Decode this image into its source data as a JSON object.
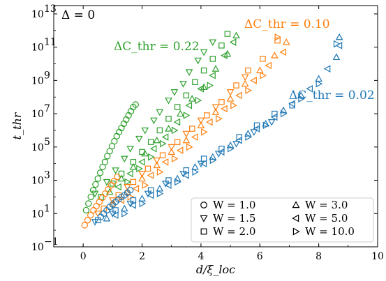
{
  "chart_data": {
    "type": "scatter",
    "title": "",
    "xlabel": "d/ξ_loc",
    "ylabel": "t_thr",
    "xlim": [
      -1,
      10
    ],
    "ylim_log10": [
      -1,
      13.5
    ],
    "y_scale": "log",
    "xticks": [
      "0",
      "2",
      "4",
      "6",
      "8",
      "10"
    ],
    "yticks": [
      {
        "exp": -1,
        "label": "10",
        "sup": "−1"
      },
      {
        "exp": 1,
        "label": "10",
        "sup": "1"
      },
      {
        "exp": 3,
        "label": "10",
        "sup": "3"
      },
      {
        "exp": 5,
        "label": "10",
        "sup": "5"
      },
      {
        "exp": 7,
        "label": "10",
        "sup": "7"
      },
      {
        "exp": 9,
        "label": "10",
        "sup": "9"
      },
      {
        "exp": 11,
        "label": "10",
        "sup": "11"
      },
      {
        "exp": 13,
        "label": "10",
        "sup": "13"
      }
    ],
    "grid": false,
    "legend_position": "bottom-right",
    "corner_label": "Δ = 0",
    "annotations": [
      {
        "text": "ΔC_thr = 0.22",
        "color": "#2ca02c"
      },
      {
        "text": "ΔC_thr = 0.10",
        "color": "#ff7f0e"
      },
      {
        "text": "ΔC_thr = 0.02",
        "color": "#1f77b4"
      }
    ],
    "legend": [
      {
        "marker": "circle",
        "label": "W = 1.0"
      },
      {
        "marker": "triangle-down",
        "label": "W = 1.5"
      },
      {
        "marker": "square",
        "label": "W = 2.0"
      },
      {
        "marker": "triangle-up",
        "label": "W = 3.0"
      },
      {
        "marker": "triangle-left",
        "label": "W = 5.0"
      },
      {
        "marker": "triangle-right",
        "label": "W = 10.0"
      }
    ],
    "series": [
      {
        "group": "ΔC_thr = 0.22",
        "color": "#2ca02c",
        "W": "1.0",
        "marker": "circle",
        "points": [
          [
            0.1,
            1.2
          ],
          [
            0.18,
            1.6
          ],
          [
            0.26,
            2.0
          ],
          [
            0.34,
            2.4
          ],
          [
            0.42,
            2.75
          ],
          [
            0.5,
            3.1
          ],
          [
            0.58,
            3.45
          ],
          [
            0.66,
            3.8
          ],
          [
            0.74,
            4.1
          ],
          [
            0.82,
            4.45
          ],
          [
            0.9,
            4.75
          ],
          [
            0.98,
            5.05
          ],
          [
            1.06,
            5.35
          ],
          [
            1.14,
            5.65
          ],
          [
            1.22,
            5.9
          ],
          [
            1.3,
            6.15
          ],
          [
            1.38,
            6.4
          ],
          [
            1.46,
            6.65
          ],
          [
            1.54,
            6.9
          ],
          [
            1.62,
            7.15
          ],
          [
            1.7,
            7.4
          ],
          [
            1.78,
            7.55
          ]
        ]
      },
      {
        "group": "ΔC_thr = 0.22",
        "color": "#2ca02c",
        "W": "1.5",
        "marker": "triangle-down",
        "points": [
          [
            0.4,
            2.2
          ],
          [
            0.8,
            2.9
          ],
          [
            1.1,
            3.6
          ],
          [
            1.4,
            4.3
          ],
          [
            1.6,
            4.9
          ],
          [
            1.9,
            5.5
          ],
          [
            2.1,
            6.0
          ],
          [
            2.4,
            6.6
          ],
          [
            2.6,
            7.1
          ],
          [
            2.9,
            7.8
          ],
          [
            3.1,
            8.3
          ],
          [
            3.4,
            8.8
          ],
          [
            3.6,
            9.5
          ],
          [
            3.9,
            10.2
          ],
          [
            4.1,
            10.7
          ],
          [
            4.4,
            11.3
          ]
        ]
      },
      {
        "group": "ΔC_thr = 0.22",
        "color": "#2ca02c",
        "W": "2.0",
        "marker": "square",
        "points": [
          [
            0.6,
            2.0
          ],
          [
            1.0,
            2.8
          ],
          [
            1.3,
            3.4
          ],
          [
            1.7,
            4.1
          ],
          [
            2.0,
            4.7
          ],
          [
            2.3,
            5.3
          ],
          [
            2.6,
            6.0
          ],
          [
            2.9,
            6.7
          ],
          [
            3.2,
            7.4
          ],
          [
            3.5,
            8.1
          ],
          [
            3.8,
            8.9
          ],
          [
            4.1,
            9.6
          ],
          [
            4.4,
            10.3
          ],
          [
            4.7,
            11.1
          ],
          [
            4.9,
            11.8
          ]
        ]
      },
      {
        "group": "ΔC_thr = 0.22",
        "color": "#2ca02c",
        "W": "3.0",
        "marker": "triangle-up",
        "points": [
          [
            0.9,
            2.3
          ],
          [
            1.3,
            3.1
          ],
          [
            1.7,
            3.8
          ],
          [
            2.1,
            4.6
          ],
          [
            2.5,
            5.4
          ],
          [
            2.9,
            6.1
          ],
          [
            3.3,
            7.0
          ],
          [
            3.7,
            7.9
          ],
          [
            4.1,
            8.6
          ],
          [
            4.5,
            9.7
          ],
          [
            4.9,
            10.6
          ],
          [
            5.2,
            11.7
          ]
        ]
      },
      {
        "group": "ΔC_thr = 0.22",
        "color": "#2ca02c",
        "W": "5.0",
        "marker": "triangle-left",
        "points": [
          [
            1.2,
            2.6
          ],
          [
            1.6,
            3.4
          ],
          [
            2.0,
            4.1
          ],
          [
            2.4,
            4.9
          ],
          [
            2.8,
            5.6
          ],
          [
            3.2,
            6.5
          ],
          [
            3.6,
            7.5
          ],
          [
            4.0,
            8.5
          ],
          [
            4.4,
            9.3
          ],
          [
            4.8,
            10.5
          ],
          [
            5.1,
            11.3
          ]
        ]
      },
      {
        "group": "ΔC_thr = 0.22",
        "color": "#2ca02c",
        "W": "10.0",
        "marker": "triangle-right",
        "points": [
          [
            1.5,
            2.9
          ],
          [
            1.9,
            3.7
          ],
          [
            2.3,
            4.4
          ],
          [
            2.7,
            5.2
          ],
          [
            3.1,
            6.0
          ],
          [
            3.5,
            6.9
          ],
          [
            3.9,
            7.8
          ],
          [
            4.3,
            8.7
          ]
        ]
      },
      {
        "group": "ΔC_thr = 0.10",
        "color": "#ff7f0e",
        "W": "1.0",
        "marker": "circle",
        "points": [
          [
            0.05,
            0.3
          ],
          [
            0.15,
            0.6
          ],
          [
            0.25,
            0.9
          ],
          [
            0.35,
            1.2
          ],
          [
            0.45,
            1.45
          ],
          [
            0.55,
            1.7
          ],
          [
            0.65,
            1.95
          ],
          [
            0.75,
            2.2
          ],
          [
            0.85,
            2.45
          ],
          [
            0.95,
            2.7
          ],
          [
            1.05,
            2.95
          ],
          [
            1.15,
            3.2
          ]
        ]
      },
      {
        "group": "ΔC_thr = 0.10",
        "color": "#ff7f0e",
        "W": "1.5",
        "marker": "triangle-down",
        "points": [
          [
            0.5,
            1.0
          ],
          [
            1.0,
            1.8
          ],
          [
            1.5,
            2.6
          ],
          [
            2.0,
            3.4
          ],
          [
            2.5,
            4.2
          ],
          [
            3.0,
            5.0
          ],
          [
            3.5,
            5.8
          ],
          [
            4.0,
            6.6
          ],
          [
            4.5,
            7.4
          ],
          [
            5.0,
            8.3
          ],
          [
            5.5,
            9.2
          ]
        ]
      },
      {
        "group": "ΔC_thr = 0.10",
        "color": "#ff7f0e",
        "W": "2.0",
        "marker": "square",
        "points": [
          [
            0.7,
            1.3
          ],
          [
            1.2,
            2.1
          ],
          [
            1.7,
            2.9
          ],
          [
            2.2,
            3.7
          ],
          [
            2.7,
            4.5
          ],
          [
            3.2,
            5.3
          ],
          [
            3.7,
            6.1
          ],
          [
            4.2,
            6.9
          ],
          [
            4.7,
            7.7
          ],
          [
            5.2,
            8.7
          ],
          [
            5.6,
            9.6
          ],
          [
            6.1,
            10.3
          ],
          [
            6.6,
            11.4
          ]
        ]
      },
      {
        "group": "ΔC_thr = 0.10",
        "color": "#ff7f0e",
        "W": "3.0",
        "marker": "triangle-up",
        "points": [
          [
            1.0,
            1.6
          ],
          [
            1.5,
            2.3
          ],
          [
            2.0,
            3.1
          ],
          [
            2.5,
            3.9
          ],
          [
            3.0,
            4.7
          ],
          [
            3.5,
            5.4
          ],
          [
            4.0,
            6.3
          ],
          [
            4.5,
            7.1
          ],
          [
            5.0,
            7.9
          ],
          [
            5.5,
            8.8
          ],
          [
            6.0,
            9.6
          ],
          [
            6.5,
            10.5
          ],
          [
            6.9,
            11.3
          ]
        ]
      },
      {
        "group": "ΔC_thr = 0.10",
        "color": "#ff7f0e",
        "W": "5.0",
        "marker": "triangle-left",
        "points": [
          [
            1.3,
            1.8
          ],
          [
            1.8,
            2.5
          ],
          [
            2.3,
            3.3
          ],
          [
            2.8,
            4.1
          ],
          [
            3.3,
            4.8
          ],
          [
            3.8,
            5.6
          ],
          [
            4.3,
            6.5
          ],
          [
            4.8,
            7.3
          ],
          [
            5.3,
            8.1
          ],
          [
            5.8,
            9.0
          ],
          [
            6.3,
            9.9
          ],
          [
            6.8,
            10.7
          ]
        ]
      },
      {
        "group": "ΔC_thr = 0.10",
        "color": "#ff7f0e",
        "W": "10.0",
        "marker": "triangle-right",
        "points": [
          [
            1.6,
            2.0
          ],
          [
            2.1,
            2.7
          ],
          [
            2.6,
            3.5
          ],
          [
            3.1,
            4.3
          ],
          [
            3.6,
            5.0
          ],
          [
            4.1,
            5.9
          ],
          [
            4.6,
            6.7
          ],
          [
            5.1,
            7.5
          ],
          [
            5.6,
            8.4
          ],
          [
            6.1,
            9.3
          ],
          [
            6.6,
            11.6
          ]
        ]
      },
      {
        "group": "ΔC_thr = 0.02",
        "color": "#1f77b4",
        "W": "1.0",
        "marker": "circle",
        "points": [
          [
            0.6,
            0.8
          ],
          [
            0.7,
            1.0
          ],
          [
            0.8,
            1.2
          ],
          [
            0.9,
            1.4
          ],
          [
            1.0,
            1.55
          ],
          [
            1.1,
            1.7
          ],
          [
            1.2,
            1.85
          ],
          [
            1.3,
            2.0
          ],
          [
            1.4,
            2.1
          ],
          [
            1.5,
            2.25
          ],
          [
            1.6,
            2.4
          ]
        ]
      },
      {
        "group": "ΔC_thr = 0.02",
        "color": "#1f77b4",
        "W": "1.5",
        "marker": "triangle-down",
        "points": [
          [
            0.4,
            0.5
          ],
          [
            1.0,
            1.0
          ],
          [
            1.6,
            1.6
          ],
          [
            2.2,
            2.2
          ],
          [
            2.8,
            2.8
          ],
          [
            3.4,
            3.4
          ],
          [
            4.0,
            4.0
          ],
          [
            4.6,
            4.6
          ],
          [
            5.2,
            5.2
          ],
          [
            5.8,
            5.9
          ],
          [
            6.4,
            6.5
          ]
        ]
      },
      {
        "group": "ΔC_thr = 0.02",
        "color": "#1f77b4",
        "W": "2.0",
        "marker": "square",
        "points": [
          [
            0.5,
            0.6
          ],
          [
            1.1,
            1.2
          ],
          [
            1.7,
            1.8
          ],
          [
            2.3,
            2.4
          ],
          [
            2.9,
            3.0
          ],
          [
            3.5,
            3.6
          ],
          [
            4.1,
            4.3
          ],
          [
            4.7,
            4.9
          ],
          [
            5.3,
            5.6
          ],
          [
            5.9,
            6.3
          ],
          [
            6.5,
            7.0
          ],
          [
            7.1,
            7.5
          ]
        ]
      },
      {
        "group": "ΔC_thr = 0.02",
        "color": "#1f77b4",
        "W": "3.0",
        "marker": "triangle-up",
        "points": [
          [
            0.8,
            0.7
          ],
          [
            1.4,
            1.3
          ],
          [
            2.0,
            1.9
          ],
          [
            2.6,
            2.5
          ],
          [
            3.2,
            3.1
          ],
          [
            3.8,
            3.8
          ],
          [
            4.4,
            4.4
          ],
          [
            5.0,
            5.1
          ],
          [
            5.6,
            5.8
          ],
          [
            6.2,
            6.4
          ],
          [
            6.8,
            7.2
          ],
          [
            7.4,
            8.1
          ],
          [
            8.0,
            9.1
          ],
          [
            8.6,
            10.4
          ],
          [
            8.7,
            11.6
          ]
        ]
      },
      {
        "group": "ΔC_thr = 0.02",
        "color": "#1f77b4",
        "W": "5.0",
        "marker": "triangle-left",
        "points": [
          [
            1.1,
            0.9
          ],
          [
            1.7,
            1.5
          ],
          [
            2.3,
            2.1
          ],
          [
            2.9,
            2.7
          ],
          [
            3.5,
            3.3
          ],
          [
            4.1,
            4.0
          ],
          [
            4.7,
            4.7
          ],
          [
            5.3,
            5.4
          ],
          [
            5.9,
            6.1
          ],
          [
            6.5,
            6.8
          ],
          [
            7.1,
            7.6
          ],
          [
            7.7,
            8.5
          ],
          [
            8.3,
            9.7
          ],
          [
            8.7,
            11.1
          ]
        ]
      },
      {
        "group": "ΔC_thr = 0.02",
        "color": "#1f77b4",
        "W": "10.0",
        "marker": "triangle-right",
        "points": [
          [
            1.4,
            1.0
          ],
          [
            2.0,
            1.6
          ],
          [
            2.6,
            2.2
          ],
          [
            3.2,
            2.9
          ],
          [
            3.8,
            3.5
          ],
          [
            4.4,
            4.2
          ],
          [
            5.0,
            4.9
          ],
          [
            5.6,
            5.6
          ],
          [
            6.2,
            6.3
          ],
          [
            6.8,
            7.0
          ],
          [
            7.4,
            7.9
          ],
          [
            8.0,
            8.8
          ],
          [
            8.6,
            11.2
          ]
        ]
      }
    ]
  }
}
